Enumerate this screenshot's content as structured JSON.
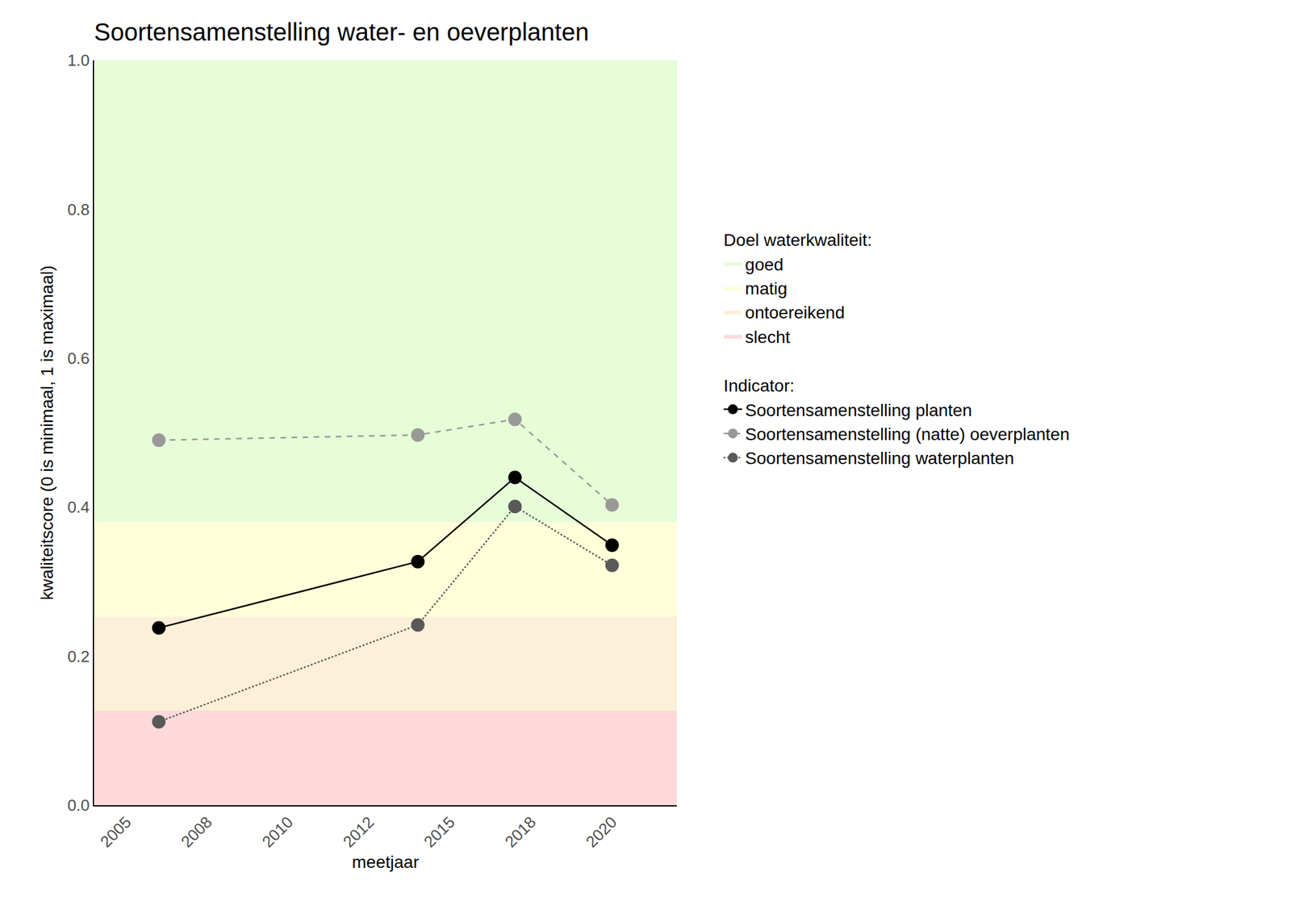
{
  "chart_data": {
    "type": "line",
    "title": "Soortensamenstelling water- en oeverplanten",
    "x_label": "meetjaar",
    "y_label": "kwaliteitscore (0 is minimaal, 1 is maximaal)",
    "x": [
      2006,
      2014,
      2017,
      2020
    ],
    "series_title": "Indicator:",
    "series": [
      {
        "name": "Soortensamenstelling planten",
        "color": "#000000",
        "line_style": "solid",
        "marker": "circle",
        "values": [
          0.238,
          0.327,
          0.44,
          0.349
        ]
      },
      {
        "name": "Soortensamenstelling (natte) oeverplanten",
        "color": "#999999",
        "line_style": "dash",
        "marker": "circle",
        "values": [
          0.49,
          0.497,
          0.518,
          0.403
        ]
      },
      {
        "name": "Soortensamenstelling waterplanten",
        "color": "#595959",
        "line_style": "dot",
        "marker": "circle",
        "values": [
          0.112,
          0.242,
          0.401,
          0.322
        ]
      }
    ],
    "bands": {
      "title": "Doel waterkwaliteit:",
      "items": [
        {
          "name": "goed",
          "from": 0.38,
          "to": 1.0,
          "color": "#e6fdd8"
        },
        {
          "name": "matig",
          "from": 0.253,
          "to": 0.38,
          "color": "#fefed8"
        },
        {
          "name": "ontoereikend",
          "from": 0.127,
          "to": 0.253,
          "color": "#fdf0d8"
        },
        {
          "name": "slecht",
          "from": 0.0,
          "to": 0.127,
          "color": "#fdd9db"
        }
      ]
    },
    "xlim": [
      2004,
      2022
    ],
    "xticks": [
      2005,
      {
        "value": 2007.5,
        "label": "2008"
      },
      2010,
      {
        "value": 2012.5,
        "label": "2012"
      },
      2015,
      {
        "value": 2017.5,
        "label": "2018"
      },
      2020
    ],
    "ylim": [
      0,
      1
    ],
    "yticks": [
      {
        "value": 0,
        "label": "0.0"
      },
      0.2,
      0.4,
      0.6,
      0.8,
      {
        "value": 1,
        "label": "1.0"
      }
    ],
    "grid": true,
    "legend": "right"
  }
}
